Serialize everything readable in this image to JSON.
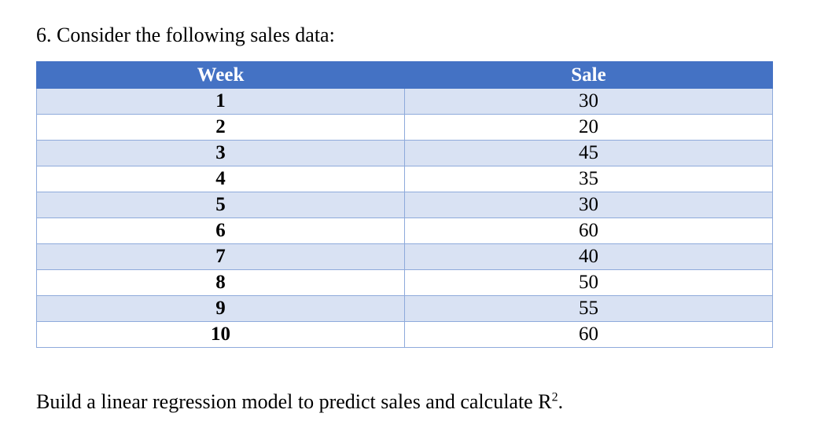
{
  "question": {
    "text": "6. Consider the following sales data:"
  },
  "table": {
    "headers": [
      "Week",
      "Sale"
    ],
    "rows": [
      [
        "1",
        "30"
      ],
      [
        "2",
        "20"
      ],
      [
        "3",
        "45"
      ],
      [
        "4",
        "35"
      ],
      [
        "5",
        "30"
      ],
      [
        "6",
        "60"
      ],
      [
        "7",
        "40"
      ],
      [
        "8",
        "50"
      ],
      [
        "9",
        "55"
      ],
      [
        "10",
        "60"
      ]
    ],
    "colors": {
      "header_bg": "#4472c4",
      "band_bg": "#d9e2f3",
      "border": "#8eaadb"
    }
  },
  "instruction": {
    "text": "Build a linear regression model to predict sales and calculate R",
    "superscript": "2",
    "suffix": "."
  }
}
